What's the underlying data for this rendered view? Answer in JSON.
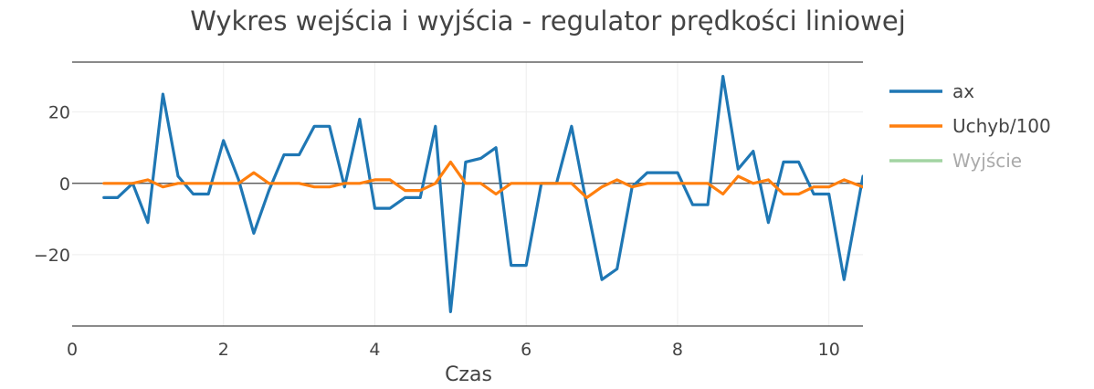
{
  "chart_data": {
    "type": "line",
    "title": "Wykres wejścia i wyjścia - regulator prędkości liniowej",
    "xlabel": "Czas",
    "ylabel": "",
    "xlim": [
      0,
      10.45
    ],
    "ylim": [
      -40,
      34
    ],
    "xticks": [
      0,
      2,
      4,
      6,
      8,
      10
    ],
    "xtick_labels": [
      "0",
      "2",
      "4",
      "6",
      "8",
      "10"
    ],
    "yticks": [
      -20,
      0,
      20
    ],
    "ytick_labels": [
      "−20",
      "0",
      "20"
    ],
    "grid": true,
    "legend_position": "top-right",
    "series": [
      {
        "name": "ax",
        "color": "#1f77b4",
        "visible": true,
        "x": [
          0.42,
          0.6,
          0.8,
          1.0,
          1.2,
          1.4,
          1.6,
          1.8,
          2.0,
          2.2,
          2.4,
          2.6,
          2.8,
          3.0,
          3.2,
          3.4,
          3.6,
          3.8,
          4.0,
          4.2,
          4.4,
          4.6,
          4.8,
          5.0,
          5.2,
          5.4,
          5.6,
          5.8,
          6.0,
          6.2,
          6.4,
          6.6,
          6.8,
          7.0,
          7.2,
          7.4,
          7.6,
          7.8,
          8.0,
          8.2,
          8.4,
          8.6,
          8.8,
          9.0,
          9.2,
          9.4,
          9.6,
          9.8,
          10.0,
          10.2,
          10.45
        ],
        "y": [
          -4,
          -4,
          0,
          -11,
          25,
          2,
          -3,
          -3,
          12,
          1,
          -14,
          -2,
          8,
          8,
          16,
          16,
          -1,
          18,
          -7,
          -7,
          -4,
          -4,
          16,
          -36,
          6,
          7,
          10,
          -23,
          -23,
          0,
          0,
          16,
          -6,
          -27,
          -24,
          -1,
          3,
          3,
          3,
          -6,
          -6,
          30,
          4,
          9,
          -11,
          6,
          6,
          -3,
          -3,
          -27,
          2
        ]
      },
      {
        "name": "Uchyb/100",
        "color": "#ff7f0e",
        "visible": true,
        "x": [
          0.42,
          0.6,
          0.8,
          1.0,
          1.2,
          1.4,
          1.6,
          1.8,
          2.0,
          2.2,
          2.4,
          2.6,
          2.8,
          3.0,
          3.2,
          3.4,
          3.6,
          3.8,
          4.0,
          4.2,
          4.4,
          4.6,
          4.8,
          5.0,
          5.2,
          5.4,
          5.6,
          5.8,
          6.0,
          6.2,
          6.4,
          6.6,
          6.8,
          7.0,
          7.2,
          7.4,
          7.6,
          7.8,
          8.0,
          8.2,
          8.4,
          8.6,
          8.8,
          9.0,
          9.2,
          9.4,
          9.6,
          9.8,
          10.0,
          10.2,
          10.45
        ],
        "y": [
          0,
          0,
          0,
          1,
          -1,
          0,
          0,
          0,
          0,
          0,
          3,
          0,
          0,
          0,
          -1,
          -1,
          0,
          0,
          1,
          1,
          -2,
          -2,
          0,
          6,
          0,
          0,
          -3,
          0,
          0,
          0,
          0,
          0,
          -4,
          -1,
          1,
          -1,
          0,
          0,
          0,
          0,
          0,
          -3,
          2,
          0,
          1,
          -3,
          -3,
          -1,
          -1,
          1,
          -1
        ]
      },
      {
        "name": "Wyjście",
        "color": "#98d098",
        "visible": false,
        "x": [],
        "y": []
      }
    ]
  }
}
